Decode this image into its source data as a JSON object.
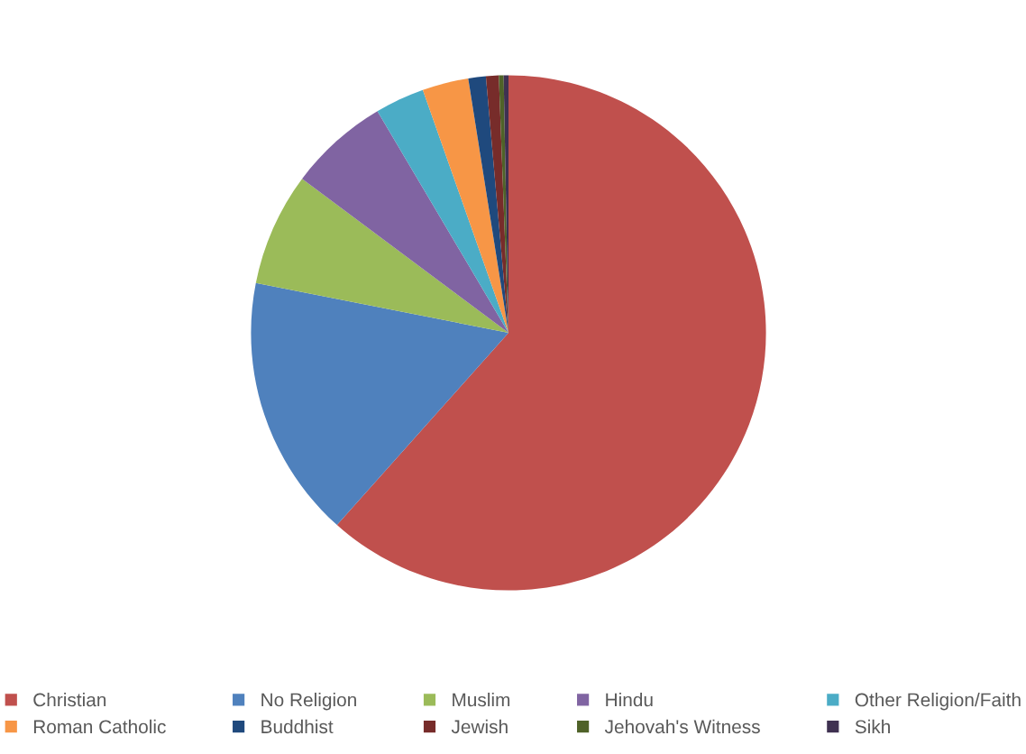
{
  "chart_data": {
    "type": "pie",
    "categories": [
      "Christian",
      "No Religion",
      "Muslim",
      "Hindu",
      "Other Religion/Faith",
      "Roman Catholic",
      "Buddhist",
      "Jewish",
      "Jehovah's Witness",
      "Sikh"
    ],
    "values": [
      61.6,
      16.5,
      7.1,
      6.3,
      3.1,
      2.9,
      1.1,
      0.8,
      0.3,
      0.3
    ],
    "colors": [
      "#c0504d",
      "#4f81bd",
      "#9bbb59",
      "#8064a2",
      "#4bacc6",
      "#f79646",
      "#1f497d",
      "#772c2a",
      "#4f6228",
      "#3f3151"
    ],
    "legend": "bottom"
  }
}
